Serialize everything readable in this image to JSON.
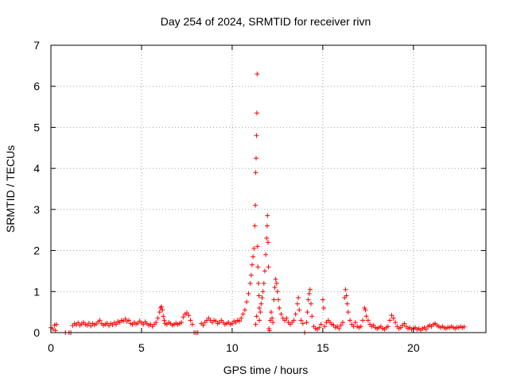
{
  "chart_data": {
    "type": "scatter",
    "title": "Day 254 of 2024, SRMTID for receiver rivn",
    "xlabel": "GPS time / hours",
    "ylabel": "SRMTID / TECUs",
    "xlim": [
      0,
      24
    ],
    "ylim": [
      0,
      7
    ],
    "xticks": [
      0,
      5,
      10,
      15,
      20
    ],
    "yticks": [
      0,
      1,
      2,
      3,
      4,
      5,
      6,
      7
    ],
    "grid": true,
    "marker": "+",
    "series": [
      {
        "color": "#ff0000",
        "points": [
          [
            0.0,
            0.12
          ],
          [
            0.1,
            0.09
          ],
          [
            0.2,
            0.18
          ],
          [
            0.25,
            0.05
          ],
          [
            0.3,
            0.2
          ],
          [
            0.8,
            0.0
          ],
          [
            1.0,
            0.0
          ],
          [
            1.1,
            0.0
          ],
          [
            1.2,
            0.17
          ],
          [
            1.3,
            0.22
          ],
          [
            1.4,
            0.19
          ],
          [
            1.5,
            0.24
          ],
          [
            1.6,
            0.18
          ],
          [
            1.7,
            0.21
          ],
          [
            1.8,
            0.25
          ],
          [
            1.9,
            0.2
          ],
          [
            2.0,
            0.18
          ],
          [
            2.1,
            0.23
          ],
          [
            2.2,
            0.16
          ],
          [
            2.3,
            0.22
          ],
          [
            2.4,
            0.19
          ],
          [
            2.5,
            0.21
          ],
          [
            2.6,
            0.26
          ],
          [
            2.7,
            0.3
          ],
          [
            2.8,
            0.22
          ],
          [
            2.9,
            0.18
          ],
          [
            3.0,
            0.2
          ],
          [
            3.1,
            0.23
          ],
          [
            3.2,
            0.17
          ],
          [
            3.3,
            0.22
          ],
          [
            3.4,
            0.19
          ],
          [
            3.5,
            0.24
          ],
          [
            3.6,
            0.2
          ],
          [
            3.7,
            0.27
          ],
          [
            3.8,
            0.25
          ],
          [
            3.9,
            0.3
          ],
          [
            4.0,
            0.28
          ],
          [
            4.1,
            0.33
          ],
          [
            4.2,
            0.27
          ],
          [
            4.3,
            0.3
          ],
          [
            4.4,
            0.22
          ],
          [
            4.5,
            0.2
          ],
          [
            4.6,
            0.25
          ],
          [
            4.7,
            0.21
          ],
          [
            4.8,
            0.23
          ],
          [
            4.9,
            0.28
          ],
          [
            5.0,
            0.24
          ],
          [
            5.1,
            0.2
          ],
          [
            5.2,
            0.26
          ],
          [
            5.3,
            0.22
          ],
          [
            5.4,
            0.18
          ],
          [
            5.5,
            0.2
          ],
          [
            5.6,
            0.15
          ],
          [
            5.7,
            0.2
          ],
          [
            5.8,
            0.25
          ],
          [
            5.9,
            0.35
          ],
          [
            6.0,
            0.5
          ],
          [
            6.05,
            0.6
          ],
          [
            6.1,
            0.63
          ],
          [
            6.15,
            0.55
          ],
          [
            6.2,
            0.4
          ],
          [
            6.25,
            0.3
          ],
          [
            6.3,
            0.22
          ],
          [
            6.4,
            0.2
          ],
          [
            6.5,
            0.25
          ],
          [
            6.6,
            0.22
          ],
          [
            6.7,
            0.18
          ],
          [
            6.8,
            0.2
          ],
          [
            6.9,
            0.23
          ],
          [
            7.0,
            0.2
          ],
          [
            7.1,
            0.22
          ],
          [
            7.2,
            0.25
          ],
          [
            7.3,
            0.38
          ],
          [
            7.4,
            0.45
          ],
          [
            7.5,
            0.48
          ],
          [
            7.6,
            0.42
          ],
          [
            7.7,
            0.3
          ],
          [
            7.8,
            0.2
          ],
          [
            7.9,
            0.0
          ],
          [
            8.0,
            0.0
          ],
          [
            8.1,
            0.0
          ],
          [
            8.3,
            0.22
          ],
          [
            8.4,
            0.18
          ],
          [
            8.5,
            0.25
          ],
          [
            8.6,
            0.3
          ],
          [
            8.7,
            0.35
          ],
          [
            8.8,
            0.3
          ],
          [
            8.9,
            0.25
          ],
          [
            9.0,
            0.3
          ],
          [
            9.1,
            0.28
          ],
          [
            9.2,
            0.22
          ],
          [
            9.3,
            0.25
          ],
          [
            9.4,
            0.3
          ],
          [
            9.5,
            0.25
          ],
          [
            9.6,
            0.2
          ],
          [
            9.7,
            0.22
          ],
          [
            9.8,
            0.25
          ],
          [
            9.9,
            0.2
          ],
          [
            10.0,
            0.22
          ],
          [
            10.1,
            0.28
          ],
          [
            10.2,
            0.25
          ],
          [
            10.3,
            0.3
          ],
          [
            10.4,
            0.28
          ],
          [
            10.5,
            0.35
          ],
          [
            10.6,
            0.45
          ],
          [
            10.7,
            0.55
          ],
          [
            10.8,
            0.75
          ],
          [
            10.9,
            0.95
          ],
          [
            11.0,
            1.2
          ],
          [
            11.05,
            1.4
          ],
          [
            11.1,
            1.65
          ],
          [
            11.15,
            1.85
          ],
          [
            11.2,
            2.05
          ],
          [
            11.25,
            2.6
          ],
          [
            11.28,
            3.1
          ],
          [
            11.3,
            3.9
          ],
          [
            11.32,
            4.25
          ],
          [
            11.34,
            4.8
          ],
          [
            11.36,
            5.35
          ],
          [
            11.38,
            6.3
          ],
          [
            11.4,
            2.1
          ],
          [
            11.42,
            1.6
          ],
          [
            11.45,
            1.2
          ],
          [
            11.48,
            0.9
          ],
          [
            11.5,
            0.6
          ],
          [
            11.3,
            0.2
          ],
          [
            11.35,
            0.4
          ],
          [
            11.5,
            0.3
          ],
          [
            11.55,
            0.5
          ],
          [
            11.6,
            0.7
          ],
          [
            11.65,
            0.85
          ],
          [
            11.7,
            1.0
          ],
          [
            11.75,
            1.2
          ],
          [
            11.8,
            1.5
          ],
          [
            11.85,
            1.9
          ],
          [
            11.9,
            2.3
          ],
          [
            11.93,
            2.6
          ],
          [
            11.95,
            2.85
          ],
          [
            11.98,
            2.2
          ],
          [
            12.0,
            1.6
          ],
          [
            12.03,
            0.1
          ],
          [
            12.05,
            0.05
          ],
          [
            12.1,
            0.3
          ],
          [
            12.15,
            0.5
          ],
          [
            12.2,
            0.35
          ],
          [
            12.25,
            0.25
          ],
          [
            12.3,
            0.8
          ],
          [
            12.35,
            1.1
          ],
          [
            12.4,
            1.3
          ],
          [
            12.45,
            1.2
          ],
          [
            12.5,
            1.0
          ],
          [
            12.55,
            0.8
          ],
          [
            12.6,
            0.6
          ],
          [
            12.7,
            0.45
          ],
          [
            12.8,
            0.35
          ],
          [
            12.9,
            0.3
          ],
          [
            13.0,
            0.35
          ],
          [
            13.1,
            0.25
          ],
          [
            13.2,
            0.2
          ],
          [
            13.3,
            0.25
          ],
          [
            13.4,
            0.3
          ],
          [
            13.5,
            0.45
          ],
          [
            13.6,
            0.7
          ],
          [
            13.65,
            0.85
          ],
          [
            13.7,
            0.55
          ],
          [
            13.8,
            0.3
          ],
          [
            13.9,
            0.22
          ],
          [
            14.0,
            0.0
          ],
          [
            14.1,
            0.25
          ],
          [
            14.15,
            0.5
          ],
          [
            14.2,
            0.8
          ],
          [
            14.25,
            0.95
          ],
          [
            14.3,
            1.05
          ],
          [
            14.35,
            0.7
          ],
          [
            14.4,
            0.4
          ],
          [
            14.5,
            0.15
          ],
          [
            14.6,
            0.1
          ],
          [
            14.7,
            0.08
          ],
          [
            14.8,
            0.12
          ],
          [
            14.9,
            0.2
          ],
          [
            15.0,
            0.8
          ],
          [
            15.05,
            0.6
          ],
          [
            15.1,
            0.15
          ],
          [
            15.2,
            0.25
          ],
          [
            15.3,
            0.3
          ],
          [
            15.4,
            0.25
          ],
          [
            15.5,
            0.2
          ],
          [
            15.6,
            0.18
          ],
          [
            15.7,
            0.12
          ],
          [
            15.8,
            0.15
          ],
          [
            15.9,
            0.1
          ],
          [
            16.0,
            0.18
          ],
          [
            16.1,
            0.25
          ],
          [
            16.2,
            0.85
          ],
          [
            16.25,
            1.05
          ],
          [
            16.3,
            0.9
          ],
          [
            16.35,
            0.7
          ],
          [
            16.4,
            0.5
          ],
          [
            16.5,
            0.3
          ],
          [
            16.6,
            0.2
          ],
          [
            16.7,
            0.15
          ],
          [
            16.8,
            0.25
          ],
          [
            16.9,
            0.15
          ],
          [
            17.0,
            0.12
          ],
          [
            17.1,
            0.15
          ],
          [
            17.2,
            0.3
          ],
          [
            17.3,
            0.6
          ],
          [
            17.35,
            0.55
          ],
          [
            17.4,
            0.4
          ],
          [
            17.5,
            0.3
          ],
          [
            17.6,
            0.2
          ],
          [
            17.7,
            0.15
          ],
          [
            17.8,
            0.18
          ],
          [
            17.9,
            0.12
          ],
          [
            18.0,
            0.1
          ],
          [
            18.1,
            0.12
          ],
          [
            18.2,
            0.15
          ],
          [
            18.3,
            0.1
          ],
          [
            18.4,
            0.08
          ],
          [
            18.5,
            0.12
          ],
          [
            18.6,
            0.15
          ],
          [
            18.7,
            0.3
          ],
          [
            18.8,
            0.42
          ],
          [
            18.9,
            0.35
          ],
          [
            19.0,
            0.25
          ],
          [
            19.1,
            0.15
          ],
          [
            19.2,
            0.1
          ],
          [
            19.3,
            0.12
          ],
          [
            19.4,
            0.18
          ],
          [
            19.5,
            0.22
          ],
          [
            19.6,
            0.15
          ],
          [
            19.7,
            0.1
          ],
          [
            19.8,
            0.12
          ],
          [
            19.9,
            0.08
          ],
          [
            20.0,
            0.1
          ],
          [
            20.1,
            0.12
          ],
          [
            20.2,
            0.08
          ],
          [
            20.3,
            0.1
          ],
          [
            20.4,
            0.06
          ],
          [
            20.5,
            0.1
          ],
          [
            20.6,
            0.12
          ],
          [
            20.7,
            0.08
          ],
          [
            20.8,
            0.15
          ],
          [
            20.9,
            0.18
          ],
          [
            21.0,
            0.15
          ],
          [
            21.1,
            0.2
          ],
          [
            21.2,
            0.22
          ],
          [
            21.3,
            0.18
          ],
          [
            21.4,
            0.15
          ],
          [
            21.5,
            0.12
          ],
          [
            21.6,
            0.15
          ],
          [
            21.7,
            0.12
          ],
          [
            21.8,
            0.1
          ],
          [
            21.9,
            0.13
          ],
          [
            22.0,
            0.12
          ],
          [
            22.1,
            0.15
          ],
          [
            22.2,
            0.12
          ],
          [
            22.3,
            0.1
          ],
          [
            22.4,
            0.13
          ],
          [
            22.5,
            0.12
          ],
          [
            22.6,
            0.15
          ],
          [
            22.7,
            0.12
          ],
          [
            22.8,
            0.14
          ]
        ]
      }
    ]
  }
}
